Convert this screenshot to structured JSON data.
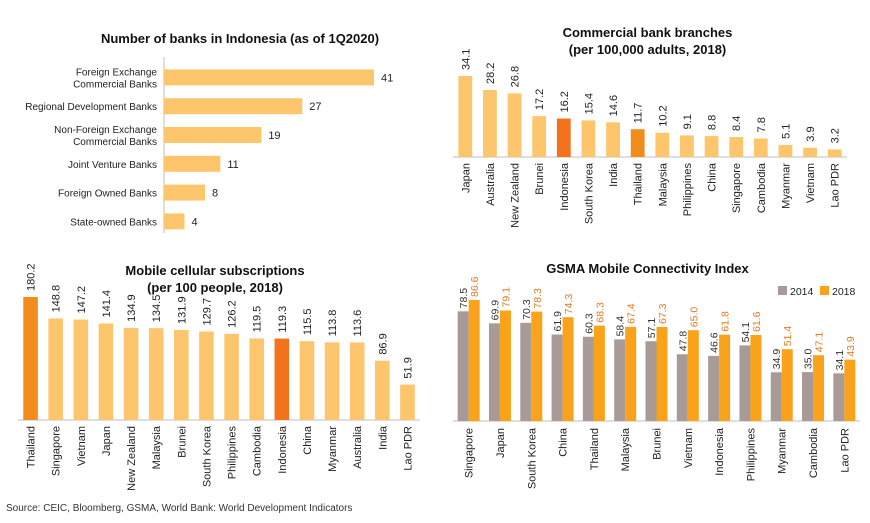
{
  "source": "Source: CEIC, Bloomberg, GSMA, World Bank: World Development Indicators",
  "colors": {
    "bar_light": "#FDC66D",
    "bar_highlight_orange": "#F28C1C",
    "bar_highlight_red": "#F4721C",
    "bar_gray": "#A89A96",
    "bar_2018": "#FAA31A",
    "label_2018": "#E07B24",
    "axis": "#BFBFBF"
  },
  "chart_data": [
    {
      "id": "banks",
      "type": "bar",
      "orientation": "horizontal",
      "title": "Number of banks in Indonesia (as of 1Q2020)",
      "categories": [
        [
          "Foreign Exchange",
          "Commercial Banks"
        ],
        [
          "Regional Development Banks"
        ],
        [
          "Non-Foreign Exchange",
          "Commercial Banks"
        ],
        [
          "Joint Venture Banks"
        ],
        [
          "Foreign Owned Banks"
        ],
        [
          "State-owned Banks"
        ]
      ],
      "values": [
        41,
        27,
        19,
        11,
        8,
        4
      ],
      "xlim": [
        0,
        41
      ]
    },
    {
      "id": "branches",
      "type": "bar",
      "orientation": "vertical",
      "title": "Commercial bank branches\n(per 100,000 adults, 2018)",
      "categories": [
        "Japan",
        "Australia",
        "New Zealand",
        "Brunei",
        "Indonesia",
        "South Korea",
        "India",
        "Thailand",
        "Malaysia",
        "Philippines",
        "China",
        "Singapore",
        "Cambodia",
        "Myanmar",
        "Vietnam",
        "Lao PDR"
      ],
      "values": [
        34.1,
        28.2,
        26.8,
        17.2,
        16.2,
        15.4,
        14.6,
        11.7,
        10.2,
        9.1,
        8.8,
        8.4,
        7.8,
        5.1,
        3.9,
        3.2
      ],
      "labels": [
        "34.1",
        "28.2",
        "26.8",
        "17.2",
        "16.2",
        "15.4",
        "14.6",
        "11.7",
        "10.2",
        "9.1",
        "8.8",
        "8.4",
        "7.8",
        "5.1",
        "3.9",
        "3.2"
      ],
      "highlight": {
        "Indonesia": "red",
        "Thailand": "orange"
      },
      "ylim": [
        0,
        34.1
      ]
    },
    {
      "id": "mobile",
      "type": "bar",
      "orientation": "vertical",
      "title": "Mobile cellular subscriptions\n(per 100 people, 2018)",
      "categories": [
        "Thailand",
        "Singapore",
        "Vietnam",
        "Japan",
        "New Zealand",
        "Malaysia",
        "Brunei",
        "South Korea",
        "Philippines",
        "Cambodia",
        "Indonesia",
        "China",
        "Myanmar",
        "Australia",
        "India",
        "Lao PDR"
      ],
      "values": [
        180.2,
        148.8,
        147.2,
        141.4,
        134.9,
        134.5,
        131.9,
        129.7,
        126.2,
        119.5,
        119.3,
        115.5,
        113.8,
        113.6,
        86.9,
        51.9
      ],
      "labels": [
        "180.2",
        "148.8",
        "147.2",
        "141.4",
        "134.9",
        "134.5",
        "131.9",
        "129.7",
        "126.2",
        "119.5",
        "119.3",
        "115.5",
        "113.8",
        "113.6",
        "86.9",
        "51.9"
      ],
      "highlight": {
        "Thailand": "orange",
        "Indonesia": "red"
      },
      "ylim": [
        0,
        180.2
      ]
    },
    {
      "id": "gsma",
      "type": "bar",
      "orientation": "vertical",
      "title": "GSMA Mobile Connectivity Index",
      "categories": [
        "Singapore",
        "Japan",
        "South Korea",
        "China",
        "Thailand",
        "Malaysia",
        "Brunei",
        "Vietnam",
        "Indonesia",
        "Philippines",
        "Myanmar",
        "Cambodia",
        "Lao PDR"
      ],
      "legend_position": "top-right",
      "series": [
        {
          "name": "2014",
          "values": [
            78.5,
            69.9,
            70.3,
            61.9,
            60.3,
            58.4,
            57.1,
            47.8,
            46.6,
            54.1,
            34.9,
            35.0,
            34.1
          ],
          "labels": [
            "78.5",
            "69.9",
            "70.3",
            "61.9",
            "60.3",
            "58.4",
            "57.1",
            "47.8",
            "46.6",
            "54.1",
            "34.9",
            "35.0",
            "34.1"
          ]
        },
        {
          "name": "2018",
          "values": [
            86.6,
            79.1,
            78.3,
            74.3,
            68.3,
            67.4,
            67.3,
            65.0,
            61.8,
            61.6,
            51.4,
            47.1,
            43.9
          ],
          "labels": [
            "86.6",
            "79.1",
            "78.3",
            "74.3",
            "68.3",
            "67.4",
            "67.3",
            "65.0",
            "61.8",
            "61.6",
            "51.4",
            "47.1",
            "43.9"
          ]
        }
      ],
      "ylim": [
        0,
        86.6
      ]
    }
  ]
}
